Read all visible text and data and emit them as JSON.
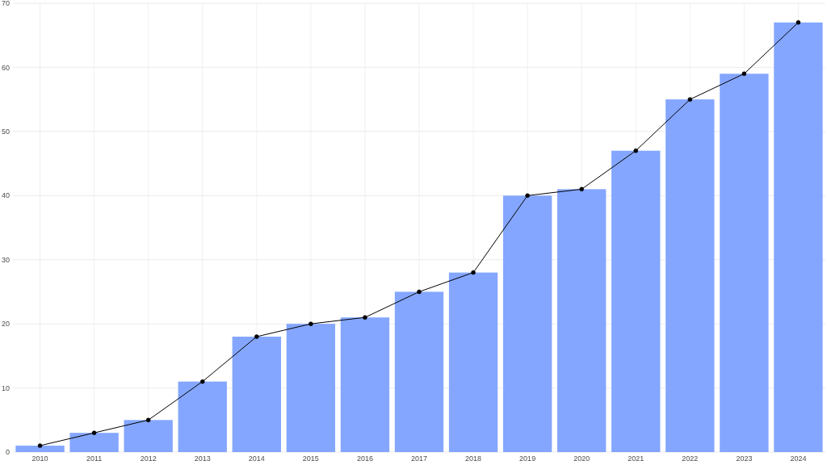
{
  "chart_data": {
    "type": "bar",
    "categories": [
      "2010",
      "2011",
      "2012",
      "2013",
      "2014",
      "2015",
      "2016",
      "2017",
      "2018",
      "2019",
      "2020",
      "2021",
      "2022",
      "2023",
      "2024"
    ],
    "series": [
      {
        "color": "#84a6ff",
        "values": [
          1,
          3,
          5,
          11,
          18,
          20,
          21,
          25,
          28,
          40,
          41,
          47,
          55,
          59,
          67
        ]
      },
      {
        "type": "line",
        "color": "#000000",
        "marker": "circle",
        "values": [
          1,
          3,
          5,
          11,
          18,
          20,
          21,
          25,
          28,
          40,
          41,
          47,
          55,
          59,
          67
        ]
      }
    ],
    "ylim": [
      0,
      70
    ],
    "yticks": [
      0,
      10,
      20,
      30,
      40,
      50,
      60,
      70
    ],
    "grid": true
  }
}
